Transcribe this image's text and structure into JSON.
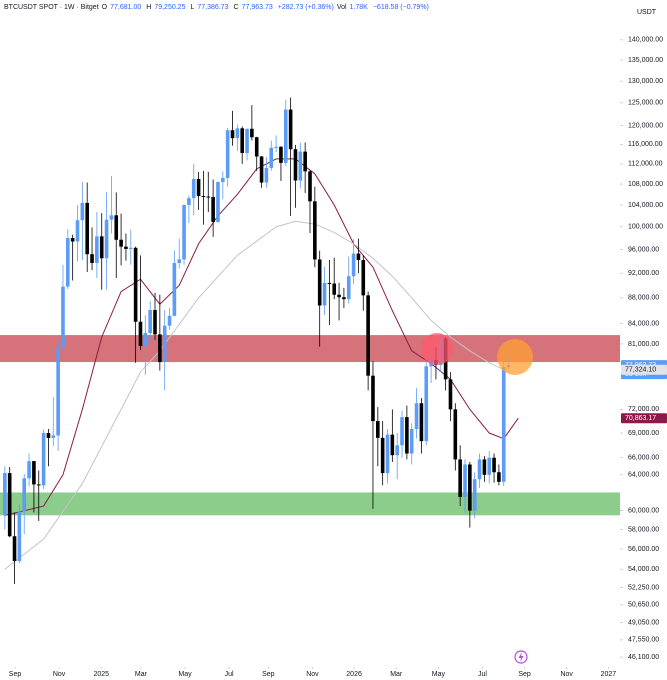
{
  "chart_data": {
    "type": "candlestick",
    "header": {
      "symbol": "BTCUSDT SPOT · 1W · Bitget",
      "fields": [
        {
          "key": "O",
          "value": "77,681.00"
        },
        {
          "key": "H",
          "value": "79,250.25"
        },
        {
          "key": "L",
          "value": "77,386.73"
        },
        {
          "key": "C",
          "value": "77,963.73"
        }
      ],
      "change": "+282.73 (+0.36%)",
      "volume_key": "Vol",
      "volume": "1.78K",
      "volume_change": "−618.58 (−0.79%)"
    },
    "currency": "USDT",
    "countdown": "5d 16h",
    "log_scale": true,
    "grid": false,
    "up_color": "#5b9cf6",
    "down_color": "#000000",
    "xlim": [
      -1,
      127
    ],
    "xticks": [
      {
        "value": 2.1,
        "label": "Sep"
      },
      {
        "value": 11.2,
        "label": "Nov"
      },
      {
        "value": 19.9,
        "label": "2025"
      },
      {
        "value": 28.1,
        "label": "Mar"
      },
      {
        "value": 37.2,
        "label": "May"
      },
      {
        "value": 46.3,
        "label": "Jul"
      },
      {
        "value": 54.4,
        "label": "Sep"
      },
      {
        "value": 63.5,
        "label": "Nov"
      },
      {
        "value": 72.1,
        "label": "2026"
      },
      {
        "value": 80.8,
        "label": "Mar"
      },
      {
        "value": 89.5,
        "label": "May"
      },
      {
        "value": 98.6,
        "label": "Jul"
      },
      {
        "value": 107.3,
        "label": "Sep"
      },
      {
        "value": 116,
        "label": "Nov"
      },
      {
        "value": 124.6,
        "label": "2027"
      }
    ],
    "ylim": [
      45450,
      145100
    ],
    "yticks": [
      {
        "value": 140000,
        "label": "140,000.00"
      },
      {
        "value": 135000,
        "label": "135,000.00"
      },
      {
        "value": 130000,
        "label": "130,000.00"
      },
      {
        "value": 125000,
        "label": "125,000.00"
      },
      {
        "value": 120000,
        "label": "120,000.00"
      },
      {
        "value": 116000,
        "label": "116,000.00"
      },
      {
        "value": 112000,
        "label": "112,000.00"
      },
      {
        "value": 108000,
        "label": "108,000.00"
      },
      {
        "value": 104000,
        "label": "104,000.00"
      },
      {
        "value": 100000,
        "label": "100,000.00"
      },
      {
        "value": 96000,
        "label": "96,000.00"
      },
      {
        "value": 92000,
        "label": "92,000.00"
      },
      {
        "value": 88000,
        "label": "88,000.00"
      },
      {
        "value": 84000,
        "label": "84,000.00"
      },
      {
        "value": 81000,
        "label": "81,000.00"
      },
      {
        "value": 72000,
        "label": "72,000.00"
      },
      {
        "value": 69000,
        "label": "69,000.00"
      },
      {
        "value": 66000,
        "label": "66,000.00"
      },
      {
        "value": 64000,
        "label": "64,000.00"
      },
      {
        "value": 60000,
        "label": "60,000.00"
      },
      {
        "value": 58000,
        "label": "58,000.00"
      },
      {
        "value": 56000,
        "label": "56,000.00"
      },
      {
        "value": 54000,
        "label": "54,000.00"
      },
      {
        "value": 52250,
        "label": "52,250.00"
      },
      {
        "value": 50650,
        "label": "50,650.00"
      },
      {
        "value": 49050,
        "label": "49,050.00"
      },
      {
        "value": 47550,
        "label": "47,550.00"
      },
      {
        "value": 46100,
        "label": "46,100.00"
      }
    ],
    "zones": [
      {
        "from": 78400,
        "to": 82300,
        "color": "#d0636b"
      },
      {
        "from": 59500,
        "to": 62000,
        "color": "#80c880"
      }
    ],
    "open": [
      59500,
      64200,
      57300,
      54800,
      59900,
      63600,
      65600,
      62900,
      62800,
      69000,
      68400,
      68700,
      80400,
      89800,
      98000,
      97400,
      101200,
      104400,
      95200,
      93700,
      98300,
      94500,
      101300,
      102100,
      97700,
      96500,
      96100,
      96300,
      84300,
      80700,
      82600,
      86100,
      82400,
      78400,
      83700,
      85200,
      93700,
      94300,
      104000,
      105300,
      109000,
      105700,
      105600,
      105500,
      100900,
      108400,
      109200,
      119000,
      117300,
      119400,
      114200,
      119300,
      117500,
      113500,
      108300,
      111200,
      115300,
      115500,
      112200,
      123500,
      115000,
      108700,
      114500,
      110500,
      104700,
      94300,
      86800,
      90400,
      90300,
      88500,
      88100,
      87800,
      91500,
      95300,
      94200,
      88400,
      76500,
      70500,
      68400,
      64200,
      68800,
      66300,
      67500,
      71000,
      66500,
      69500,
      72800,
      68000,
      77800,
      78700,
      78000,
      81800,
      76000,
      72000,
      65800,
      61500,
      65200,
      60000,
      63500,
      65800,
      64000,
      66000,
      64300,
      63200,
      77681
    ],
    "high": [
      65000,
      64900,
      59800,
      60700,
      64100,
      66500,
      65600,
      64500,
      69400,
      69500,
      73600,
      81500,
      93400,
      99600,
      98600,
      104000,
      108400,
      108300,
      99900,
      102700,
      102500,
      106400,
      109600,
      106400,
      102400,
      98800,
      99500,
      96500,
      95000,
      85300,
      87500,
      88800,
      88500,
      86100,
      86400,
      95800,
      97900,
      104100,
      105800,
      112000,
      110400,
      110600,
      110400,
      108900,
      108500,
      110500,
      119500,
      123200,
      120200,
      119800,
      119300,
      124500,
      117600,
      113600,
      113400,
      116800,
      117900,
      115600,
      125700,
      126200,
      115900,
      116400,
      116400,
      110700,
      107500,
      95800,
      93100,
      94200,
      94600,
      90400,
      89600,
      94800,
      97800,
      97900,
      95000,
      89000,
      78500,
      72300,
      70500,
      69500,
      72000,
      69000,
      71800,
      72500,
      70200,
      74800,
      73500,
      78500,
      80000,
      80500,
      82500,
      82000,
      77000,
      72800,
      67500,
      65800,
      65500,
      64300,
      66500,
      66200,
      66800,
      66500,
      65200,
      81500,
      79250.25
    ],
    "low": [
      58000,
      57200,
      52600,
      54600,
      57500,
      62700,
      59800,
      58900,
      62400,
      65000,
      67400,
      66800,
      80200,
      89400,
      90800,
      94000,
      94200,
      92200,
      92500,
      91200,
      89300,
      89300,
      98800,
      91200,
      93300,
      94100,
      93400,
      78300,
      80100,
      76600,
      81200,
      81600,
      77200,
      74500,
      83100,
      85100,
      92800,
      93400,
      100700,
      102100,
      103100,
      100400,
      102700,
      98200,
      100700,
      105100,
      107500,
      115700,
      114700,
      112000,
      112700,
      116800,
      110600,
      107300,
      107300,
      110600,
      114400,
      108600,
      111600,
      102000,
      103500,
      107200,
      106300,
      98900,
      93000,
      80600,
      85300,
      83800,
      87800,
      84500,
      86400,
      87100,
      90200,
      92000,
      86000,
      74500,
      60200,
      65000,
      62800,
      63000,
      65500,
      63500,
      66000,
      65800,
      65200,
      68300,
      66500,
      67500,
      75500,
      76000,
      77000,
      74500,
      70500,
      64500,
      60500,
      59800,
      58200,
      59200,
      62500,
      63200,
      63000,
      63100,
      62800,
      62700,
      77386.73
    ],
    "close": [
      64200,
      57300,
      54800,
      59900,
      63600,
      65600,
      62900,
      62800,
      69000,
      68400,
      68700,
      80400,
      89800,
      98000,
      97400,
      101200,
      104400,
      95200,
      93700,
      98300,
      94500,
      101300,
      102100,
      97700,
      96500,
      96100,
      96300,
      84300,
      80700,
      82600,
      86100,
      82400,
      78400,
      83700,
      85200,
      93700,
      94300,
      104000,
      105300,
      109000,
      105700,
      105600,
      105500,
      100900,
      108400,
      109200,
      119000,
      117300,
      119400,
      114200,
      119300,
      117500,
      113500,
      108300,
      111200,
      115300,
      115500,
      112200,
      123500,
      115000,
      108700,
      114500,
      110500,
      104700,
      94300,
      86800,
      90400,
      90300,
      88500,
      88100,
      87800,
      91500,
      95300,
      94200,
      88400,
      76500,
      70500,
      68400,
      64200,
      68800,
      66300,
      67500,
      71000,
      66500,
      69500,
      72800,
      68000,
      77800,
      78700,
      78000,
      81800,
      76000,
      72000,
      65800,
      61500,
      65200,
      60000,
      63500,
      65800,
      64000,
      66000,
      64300,
      63200,
      77681,
      77963.73
    ],
    "series": [
      {
        "color": "#8b1a4a",
        "x": [
          0,
          8,
          12,
          16,
          20,
          24,
          28,
          32,
          36,
          40,
          44,
          48,
          52,
          56,
          60,
          64,
          68,
          72,
          76,
          80,
          84,
          88,
          92,
          96,
          100,
          103,
          106
        ],
        "values": [
          59500,
          60500,
          64000,
          72000,
          82000,
          89000,
          91000,
          87000,
          90000,
          97000,
          102000,
          106000,
          111000,
          113000,
          113000,
          110000,
          104000,
          97000,
          93000,
          86000,
          80000,
          78200,
          76000,
          72000,
          69000,
          68300,
          70863.17
        ]
      },
      {
        "color": "#c4c4c8",
        "x": [
          0,
          8,
          16,
          24,
          28,
          32,
          40,
          48,
          56,
          60,
          64,
          68,
          72,
          76,
          80,
          84,
          88,
          92,
          96,
          100,
          103
        ],
        "values": [
          54000,
          57000,
          63000,
          72000,
          77000,
          80000,
          88000,
          95000,
          100000,
          101000,
          100500,
          99000,
          97000,
          94500,
          91500,
          88000,
          84500,
          82000,
          80000,
          78300,
          77324.1
        ]
      }
    ],
    "price_labels": [
      {
        "value": 77963.73,
        "label": "77,963.73",
        "color": "#5b9cf6"
      },
      {
        "value": 77324.1,
        "label": "77,324.10",
        "color": "#e3e3e6"
      },
      {
        "value": 70863.17,
        "label": "70,863.17",
        "color": "#8b1a4a"
      }
    ]
  }
}
